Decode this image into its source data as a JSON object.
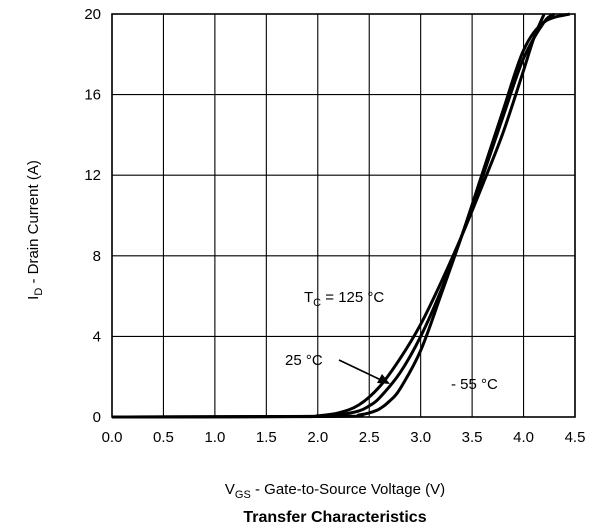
{
  "chart_data": {
    "type": "line",
    "title": "Transfer Characteristics",
    "xlabel": {
      "main": "V",
      "sub": "GS",
      "rest": " - Gate-to-Source Voltage (V)"
    },
    "ylabel": {
      "main": "I",
      "sub": "D",
      "rest": " - Drain Current (A)"
    },
    "xlim": [
      0.0,
      4.5
    ],
    "ylim": [
      0,
      20
    ],
    "xticks": [
      "0.0",
      "0.5",
      "1.0",
      "1.5",
      "2.0",
      "2.5",
      "3.0",
      "3.5",
      "4.0",
      "4.5"
    ],
    "yticks": [
      "0",
      "4",
      "8",
      "12",
      "16",
      "20"
    ],
    "grid": true,
    "series": [
      {
        "label_parts": {
          "main": "T",
          "sub": "C",
          "rest": " = 125 °C"
        },
        "x": [
          0.0,
          1.8,
          2.0,
          2.2,
          2.4,
          2.6,
          2.8,
          3.0,
          3.2,
          3.4,
          3.6,
          3.8,
          4.0,
          4.1,
          4.2
        ],
        "y": [
          0.0,
          0.02,
          0.06,
          0.2,
          0.6,
          1.5,
          2.9,
          4.6,
          6.7,
          9.0,
          11.5,
          14.1,
          17.2,
          18.8,
          20.0
        ]
      },
      {
        "label_parts": {
          "main": "25 °C",
          "sub": "",
          "rest": ""
        },
        "x": [
          0.0,
          2.0,
          2.2,
          2.4,
          2.5,
          2.6,
          2.8,
          3.0,
          3.2,
          3.4,
          3.6,
          3.8,
          4.0,
          4.2,
          4.3
        ],
        "y": [
          0.0,
          0.03,
          0.1,
          0.3,
          0.55,
          0.95,
          2.2,
          4.0,
          6.3,
          9.0,
          11.9,
          14.9,
          17.8,
          19.6,
          20.0
        ]
      },
      {
        "label_parts": {
          "main": "- 55 °C",
          "sub": "",
          "rest": ""
        },
        "x": [
          0.0,
          2.2,
          2.4,
          2.5,
          2.6,
          2.7,
          2.8,
          3.0,
          3.2,
          3.4,
          3.6,
          3.8,
          4.0,
          4.2,
          4.45
        ],
        "y": [
          0.0,
          0.03,
          0.1,
          0.2,
          0.4,
          0.8,
          1.4,
          3.3,
          6.1,
          9.0,
          12.1,
          15.2,
          18.2,
          19.6,
          20.0
        ]
      }
    ]
  }
}
